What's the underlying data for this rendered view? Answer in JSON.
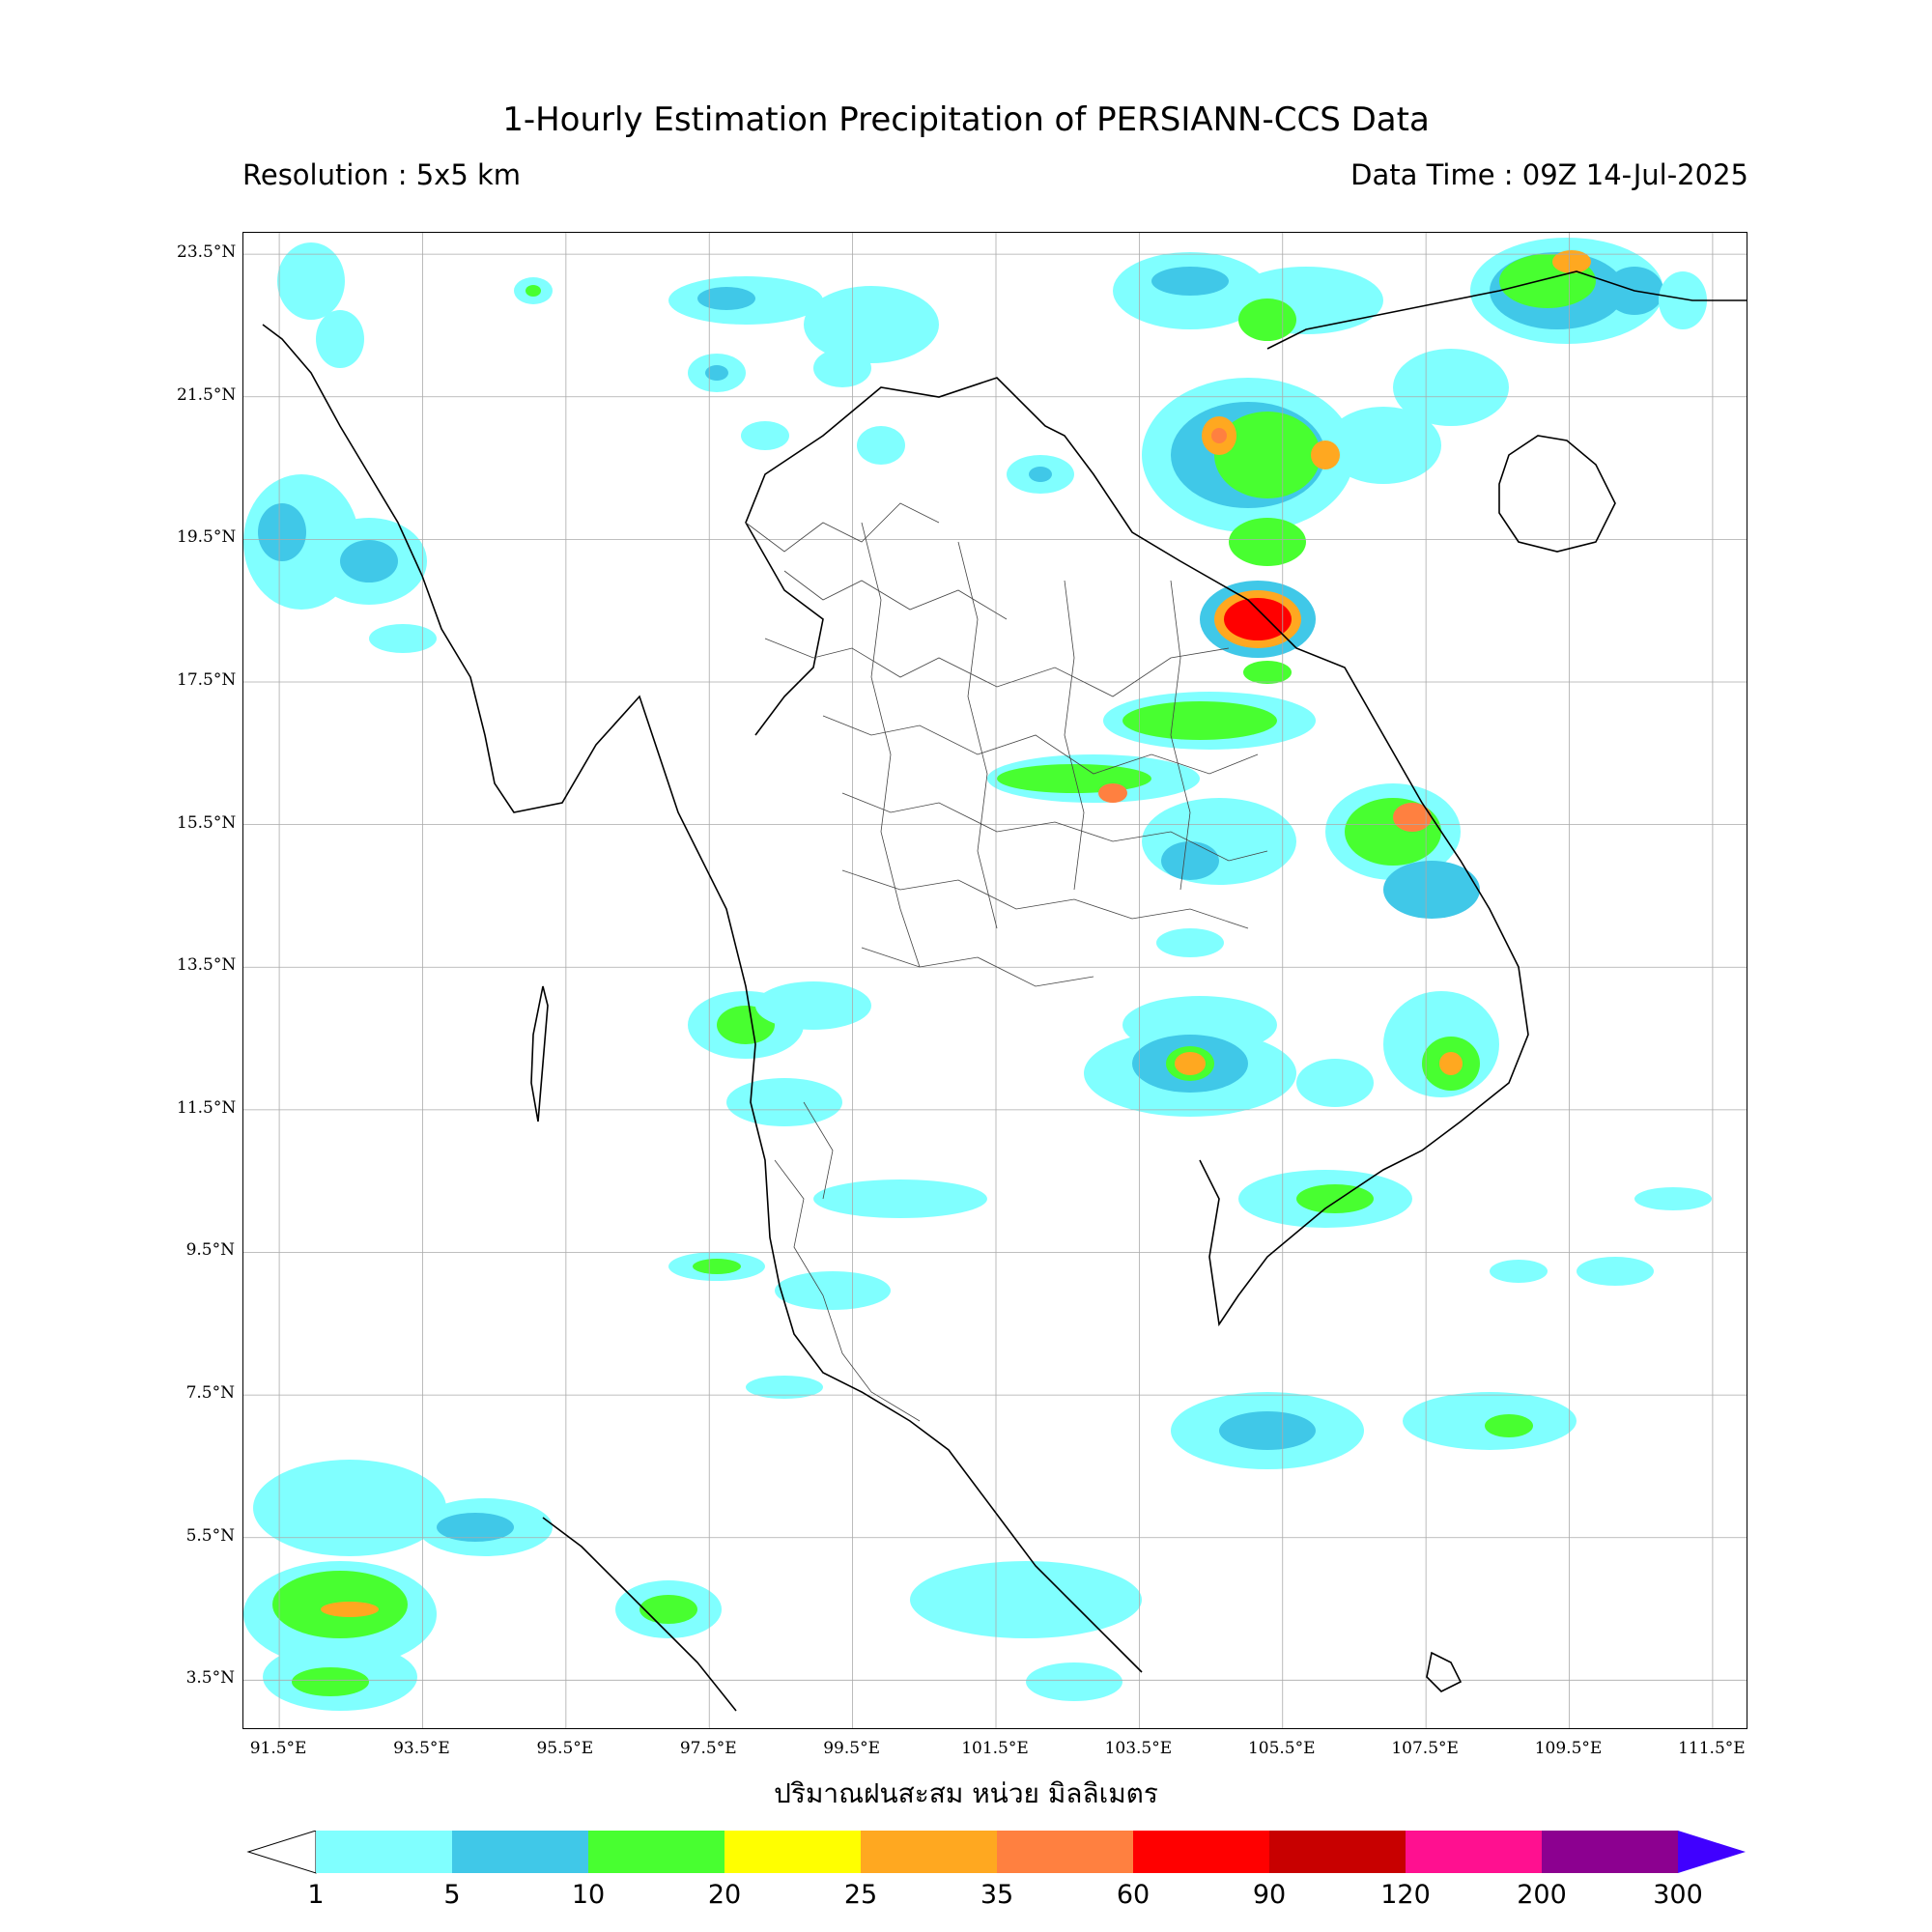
{
  "header": {
    "title": "1-Hourly Estimation Precipitation of PERSIANN-CCS Data",
    "resolution": "Resolution : 5x5 km",
    "data_time": "Data Time : 09Z 14-Jul-2025"
  },
  "map": {
    "lon_range": [
      91.0,
      112.0
    ],
    "lat_range": [
      2.8,
      23.8
    ],
    "lat_ticks": [
      "23.5°N",
      "21.5°N",
      "19.5°N",
      "17.5°N",
      "15.5°N",
      "13.5°N",
      "11.5°N",
      "9.5°N",
      "7.5°N",
      "5.5°N",
      "3.5°N"
    ],
    "lon_ticks": [
      "91.5°E",
      "93.5°E",
      "95.5°E",
      "97.5°E",
      "99.5°E",
      "101.5°E",
      "103.5°E",
      "105.5°E",
      "107.5°E",
      "109.5°E",
      "111.5°E"
    ],
    "gridlines": true
  },
  "legend": {
    "unit_label": "ปริมาณฝนสะสม หน่วย มิลลิเมตร",
    "ticks": [
      "1",
      "5",
      "10",
      "20",
      "25",
      "35",
      "60",
      "90",
      "120",
      "200",
      "300"
    ],
    "colors": [
      "#80ffff",
      "#40c8e8",
      "#48ff30",
      "#ffff00",
      "#ffa820",
      "#ff8040",
      "#ff0000",
      "#c80000",
      "#ff1090",
      "#8c0090",
      "#4000ff"
    ]
  }
}
